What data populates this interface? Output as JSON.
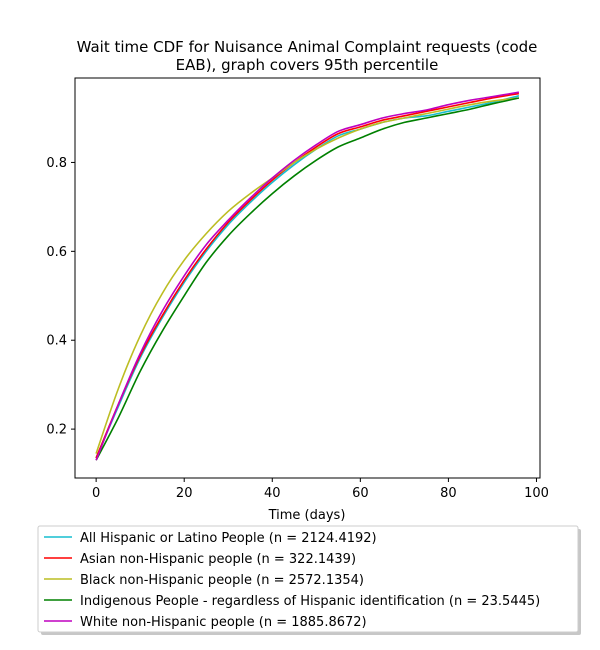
{
  "chart_data": {
    "type": "line",
    "title_lines": [
      "Wait time CDF for Nuisance Animal Complaint  requests (code",
      "EAB), graph covers 95th percentile"
    ],
    "xlabel": "Time (days)",
    "ylabel": "",
    "xlim": [
      -4.8,
      100.8
    ],
    "ylim": [
      0.09,
      0.99
    ],
    "xticks": [
      0,
      20,
      40,
      60,
      80,
      100
    ],
    "yticks": [
      0.2,
      0.4,
      0.6,
      0.8
    ],
    "xtick_labels": [
      "0",
      "20",
      "40",
      "60",
      "80",
      "100"
    ],
    "ytick_labels": [
      "0.2",
      "0.4",
      "0.6",
      "0.8"
    ],
    "grid": false,
    "legend_position": "below",
    "x": [
      0,
      5,
      10,
      15,
      20,
      25,
      30,
      35,
      40,
      45,
      50,
      55,
      60,
      65,
      70,
      75,
      80,
      85,
      90,
      96
    ],
    "series": [
      {
        "name": "All Hispanic or Latino People (n = 2124.4192)",
        "color": "#17becf",
        "values": [
          0.135,
          0.25,
          0.36,
          0.45,
          0.53,
          0.6,
          0.66,
          0.71,
          0.755,
          0.795,
          0.83,
          0.86,
          0.875,
          0.89,
          0.9,
          0.905,
          0.915,
          0.925,
          0.935,
          0.95
        ]
      },
      {
        "name": "Asian non-Hispanic people (n = 322.1439)",
        "color": "#ff0000",
        "values": [
          0.135,
          0.255,
          0.365,
          0.455,
          0.535,
          0.605,
          0.665,
          0.715,
          0.76,
          0.8,
          0.835,
          0.865,
          0.88,
          0.895,
          0.905,
          0.915,
          0.925,
          0.935,
          0.945,
          0.955
        ]
      },
      {
        "name": "Black non-Hispanic people (n = 2572.1354)",
        "color": "#bcbd22",
        "values": [
          0.145,
          0.29,
          0.41,
          0.505,
          0.58,
          0.64,
          0.69,
          0.73,
          0.765,
          0.8,
          0.83,
          0.855,
          0.875,
          0.89,
          0.9,
          0.91,
          0.92,
          0.93,
          0.938,
          0.945
        ]
      },
      {
        "name": "Indigenous People - regardless of Hispanic identification (n = 23.5445)",
        "color": "#008000",
        "values": [
          0.13,
          0.225,
          0.33,
          0.42,
          0.5,
          0.575,
          0.635,
          0.685,
          0.73,
          0.77,
          0.805,
          0.835,
          0.855,
          0.875,
          0.89,
          0.9,
          0.91,
          0.92,
          0.932,
          0.945
        ]
      },
      {
        "name": "White non-Hispanic people (n = 1885.8672)",
        "color": "#bf00bf",
        "values": [
          0.13,
          0.255,
          0.37,
          0.465,
          0.545,
          0.615,
          0.67,
          0.72,
          0.765,
          0.805,
          0.84,
          0.87,
          0.885,
          0.9,
          0.91,
          0.918,
          0.93,
          0.94,
          0.948,
          0.958
        ]
      }
    ]
  }
}
